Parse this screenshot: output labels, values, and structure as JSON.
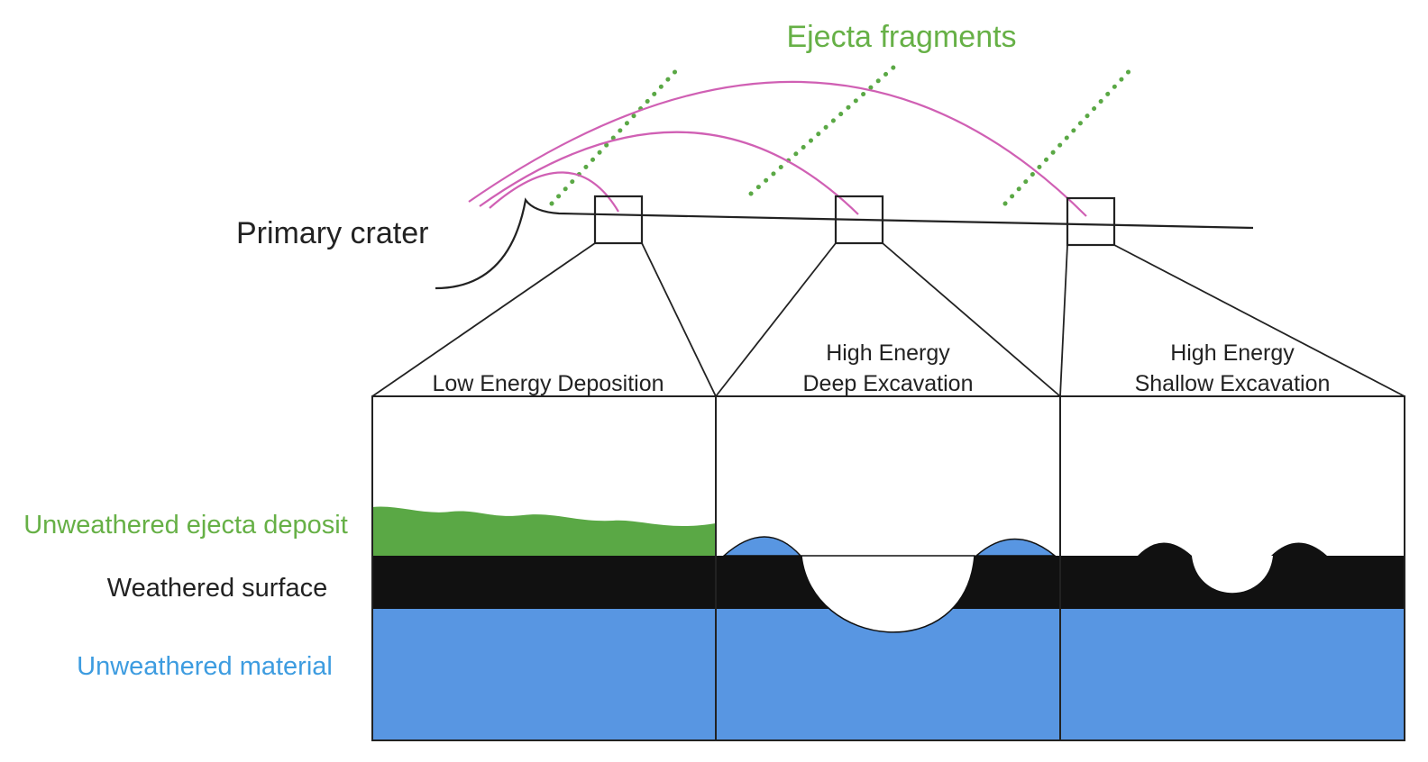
{
  "labels": {
    "ejecta_fragments": "Ejecta fragments",
    "primary_crater": "Primary crater",
    "panel_low": "Low Energy Deposition",
    "panel_deep_line1": "High Energy",
    "panel_deep_line2": "Deep Excavation",
    "panel_shallow_line1": "High Energy",
    "panel_shallow_line2": "Shallow Excavation",
    "unweathered_ejecta": "Unweathered ejecta deposit",
    "weathered_surface": "Weathered surface",
    "unweathered_material": "Unweathered material"
  },
  "colors": {
    "ejecta_green": "#5aa845",
    "ejecta_label_green": "#66b046",
    "trajectory_pink": "#d060b4",
    "weathered_black": "#111111",
    "unweathered_blue": "#5896e2",
    "unweathered_label_blue": "#3d9ce0",
    "outline": "#222222"
  }
}
